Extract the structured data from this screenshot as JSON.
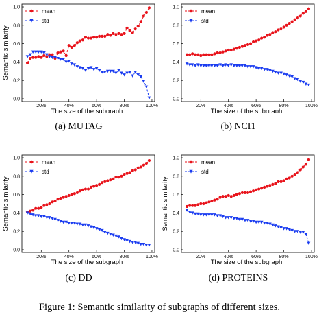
{
  "caption": "Figure 1: Semantic similarity of subgraphs of different sizes.",
  "colors": {
    "mean": "#e8131b",
    "std": "#1a3cf0"
  },
  "chart_data": [
    {
      "type": "line",
      "subcaption": "(a) MUTAG",
      "xlabel": "The size of the subgraph",
      "ylabel": "Semantic similarity",
      "xlim": [
        0.06,
        1.02
      ],
      "ylim": [
        -0.03,
        1.03
      ],
      "xticks": [
        0.2,
        0.4,
        0.6,
        0.8,
        1.0
      ],
      "xtick_labels": [
        "20%",
        "40%",
        "60%",
        "80%",
        "100%"
      ],
      "yticks": [
        0.0,
        0.2,
        0.4,
        0.6,
        0.8,
        1.0
      ],
      "ytick_labels": [
        "0.0",
        "0.2",
        "0.4",
        "0.6",
        "0.8",
        "1.0"
      ],
      "legend_position": "top-left",
      "x": [
        0.1,
        0.12,
        0.14,
        0.16,
        0.18,
        0.2,
        0.22,
        0.24,
        0.26,
        0.28,
        0.3,
        0.32,
        0.34,
        0.36,
        0.38,
        0.4,
        0.42,
        0.44,
        0.46,
        0.48,
        0.5,
        0.52,
        0.54,
        0.56,
        0.58,
        0.6,
        0.62,
        0.64,
        0.66,
        0.68,
        0.7,
        0.72,
        0.74,
        0.76,
        0.78,
        0.8,
        0.82,
        0.84,
        0.86,
        0.88,
        0.9,
        0.92,
        0.94,
        0.96,
        0.98
      ],
      "series": [
        {
          "name": "mean",
          "marker": "circle",
          "values": [
            0.39,
            0.44,
            0.45,
            0.45,
            0.46,
            0.45,
            0.47,
            0.46,
            0.48,
            0.48,
            0.44,
            0.5,
            0.51,
            0.52,
            0.47,
            0.58,
            0.56,
            0.58,
            0.61,
            0.63,
            0.64,
            0.67,
            0.66,
            0.66,
            0.67,
            0.67,
            0.68,
            0.68,
            0.68,
            0.7,
            0.69,
            0.71,
            0.7,
            0.71,
            0.7,
            0.71,
            0.77,
            0.74,
            0.72,
            0.76,
            0.79,
            0.84,
            0.9,
            0.94,
            0.99
          ]
        },
        {
          "name": "std",
          "marker": "triangle-down",
          "values": [
            0.46,
            0.48,
            0.51,
            0.51,
            0.51,
            0.51,
            0.5,
            0.48,
            0.46,
            0.45,
            0.45,
            0.44,
            0.43,
            0.43,
            0.4,
            0.41,
            0.38,
            0.37,
            0.35,
            0.34,
            0.33,
            0.31,
            0.33,
            0.34,
            0.32,
            0.33,
            0.31,
            0.29,
            0.29,
            0.3,
            0.3,
            0.3,
            0.28,
            0.31,
            0.28,
            0.26,
            0.28,
            0.29,
            0.25,
            0.29,
            0.26,
            0.24,
            0.19,
            0.13,
            0.01
          ]
        }
      ]
    },
    {
      "type": "line",
      "subcaption": "(b) NCI1",
      "xlabel": "The size of the subgraph",
      "ylabel": "",
      "xlim": [
        0.06,
        1.02
      ],
      "ylim": [
        -0.03,
        1.03
      ],
      "xticks": [
        0.2,
        0.4,
        0.6,
        0.8,
        1.0
      ],
      "xtick_labels": [
        "20%",
        "40%",
        "60%",
        "80%",
        "100%"
      ],
      "yticks": [
        0.0,
        0.2,
        0.4,
        0.6,
        0.8,
        1.0
      ],
      "ytick_labels": [
        "0.0",
        "0.2",
        "0.4",
        "0.6",
        "0.8",
        "1.0"
      ],
      "legend_position": "top-left",
      "x": [
        0.1,
        0.12,
        0.14,
        0.16,
        0.18,
        0.2,
        0.22,
        0.24,
        0.26,
        0.28,
        0.3,
        0.32,
        0.34,
        0.36,
        0.38,
        0.4,
        0.42,
        0.44,
        0.46,
        0.48,
        0.5,
        0.52,
        0.54,
        0.56,
        0.58,
        0.6,
        0.62,
        0.64,
        0.66,
        0.68,
        0.7,
        0.72,
        0.74,
        0.76,
        0.78,
        0.8,
        0.82,
        0.84,
        0.86,
        0.88,
        0.9,
        0.92,
        0.94,
        0.96,
        0.98
      ],
      "series": [
        {
          "name": "mean",
          "marker": "circle",
          "values": [
            0.48,
            0.48,
            0.49,
            0.48,
            0.48,
            0.47,
            0.48,
            0.48,
            0.48,
            0.48,
            0.49,
            0.5,
            0.5,
            0.51,
            0.52,
            0.53,
            0.53,
            0.54,
            0.55,
            0.56,
            0.57,
            0.58,
            0.59,
            0.6,
            0.62,
            0.63,
            0.64,
            0.66,
            0.67,
            0.69,
            0.7,
            0.72,
            0.73,
            0.75,
            0.76,
            0.78,
            0.8,
            0.82,
            0.84,
            0.86,
            0.88,
            0.9,
            0.93,
            0.95,
            0.98
          ]
        },
        {
          "name": "std",
          "marker": "triangle-down",
          "values": [
            0.38,
            0.37,
            0.37,
            0.36,
            0.37,
            0.36,
            0.36,
            0.36,
            0.36,
            0.36,
            0.36,
            0.36,
            0.37,
            0.36,
            0.37,
            0.36,
            0.37,
            0.36,
            0.36,
            0.36,
            0.36,
            0.36,
            0.35,
            0.35,
            0.35,
            0.34,
            0.33,
            0.33,
            0.32,
            0.32,
            0.31,
            0.3,
            0.29,
            0.28,
            0.28,
            0.27,
            0.26,
            0.25,
            0.24,
            0.22,
            0.21,
            0.19,
            0.18,
            0.16,
            0.15
          ]
        }
      ]
    },
    {
      "type": "line",
      "subcaption": "(c) DD",
      "xlabel": "The size of the subgraph",
      "ylabel": "Semantic similarity",
      "xlim": [
        0.06,
        1.02
      ],
      "ylim": [
        -0.03,
        1.03
      ],
      "xticks": [
        0.2,
        0.4,
        0.6,
        0.8,
        1.0
      ],
      "xtick_labels": [
        "20%",
        "40%",
        "60%",
        "80%",
        "100%"
      ],
      "yticks": [
        0.0,
        0.2,
        0.4,
        0.6,
        0.8,
        1.0
      ],
      "ytick_labels": [
        "0.0",
        "0.2",
        "0.4",
        "0.6",
        "0.8",
        "1.0"
      ],
      "legend_position": "top-left",
      "x": [
        0.1,
        0.12,
        0.14,
        0.16,
        0.18,
        0.2,
        0.22,
        0.24,
        0.26,
        0.28,
        0.3,
        0.32,
        0.34,
        0.36,
        0.38,
        0.4,
        0.42,
        0.44,
        0.46,
        0.48,
        0.5,
        0.52,
        0.54,
        0.56,
        0.58,
        0.6,
        0.62,
        0.64,
        0.66,
        0.68,
        0.7,
        0.72,
        0.74,
        0.76,
        0.78,
        0.8,
        0.82,
        0.84,
        0.86,
        0.88,
        0.9,
        0.92,
        0.94,
        0.96,
        0.98
      ],
      "series": [
        {
          "name": "mean",
          "marker": "circle",
          "values": [
            0.41,
            0.42,
            0.43,
            0.45,
            0.45,
            0.46,
            0.48,
            0.49,
            0.5,
            0.52,
            0.53,
            0.55,
            0.56,
            0.57,
            0.58,
            0.59,
            0.6,
            0.61,
            0.62,
            0.64,
            0.65,
            0.66,
            0.66,
            0.68,
            0.69,
            0.7,
            0.71,
            0.73,
            0.74,
            0.75,
            0.76,
            0.77,
            0.79,
            0.79,
            0.8,
            0.82,
            0.83,
            0.84,
            0.86,
            0.87,
            0.89,
            0.9,
            0.92,
            0.94,
            0.97
          ]
        },
        {
          "name": "std",
          "marker": "triangle-down",
          "values": [
            0.4,
            0.39,
            0.38,
            0.37,
            0.37,
            0.36,
            0.36,
            0.35,
            0.35,
            0.34,
            0.33,
            0.32,
            0.31,
            0.3,
            0.3,
            0.29,
            0.29,
            0.29,
            0.28,
            0.28,
            0.27,
            0.27,
            0.26,
            0.25,
            0.24,
            0.23,
            0.22,
            0.21,
            0.19,
            0.18,
            0.17,
            0.16,
            0.15,
            0.14,
            0.12,
            0.11,
            0.1,
            0.09,
            0.08,
            0.08,
            0.07,
            0.06,
            0.06,
            0.05,
            0.05
          ]
        }
      ]
    },
    {
      "type": "line",
      "subcaption": "(d) PROTEINS",
      "xlabel": "The size of the subgraph",
      "ylabel": "Semantic similarity",
      "xlim": [
        0.06,
        1.02
      ],
      "ylim": [
        -0.03,
        1.03
      ],
      "xticks": [
        0.2,
        0.4,
        0.6,
        0.8,
        1.0
      ],
      "xtick_labels": [
        "20%",
        "40%",
        "60%",
        "80%",
        "100%"
      ],
      "yticks": [
        0.0,
        0.2,
        0.4,
        0.6,
        0.8,
        1.0
      ],
      "ytick_labels": [
        "0.0",
        "0.2",
        "0.4",
        "0.6",
        "0.8",
        "1.0"
      ],
      "legend_position": "top-left",
      "x": [
        0.1,
        0.12,
        0.14,
        0.16,
        0.18,
        0.2,
        0.22,
        0.24,
        0.26,
        0.28,
        0.3,
        0.32,
        0.34,
        0.36,
        0.38,
        0.4,
        0.42,
        0.44,
        0.46,
        0.48,
        0.5,
        0.52,
        0.54,
        0.56,
        0.58,
        0.6,
        0.62,
        0.64,
        0.66,
        0.68,
        0.7,
        0.72,
        0.74,
        0.76,
        0.78,
        0.8,
        0.82,
        0.84,
        0.86,
        0.88,
        0.9,
        0.92,
        0.94,
        0.96,
        0.98
      ],
      "series": [
        {
          "name": "mean",
          "marker": "circle",
          "values": [
            0.47,
            0.48,
            0.48,
            0.48,
            0.49,
            0.5,
            0.5,
            0.51,
            0.52,
            0.53,
            0.54,
            0.55,
            0.57,
            0.58,
            0.58,
            0.59,
            0.58,
            0.59,
            0.6,
            0.61,
            0.62,
            0.62,
            0.62,
            0.63,
            0.64,
            0.65,
            0.66,
            0.67,
            0.68,
            0.69,
            0.7,
            0.71,
            0.72,
            0.74,
            0.74,
            0.75,
            0.77,
            0.78,
            0.8,
            0.82,
            0.84,
            0.87,
            0.9,
            0.93,
            0.98
          ]
        },
        {
          "name": "std",
          "marker": "triangle-down",
          "values": [
            0.43,
            0.41,
            0.4,
            0.39,
            0.39,
            0.38,
            0.38,
            0.38,
            0.38,
            0.38,
            0.38,
            0.37,
            0.37,
            0.36,
            0.35,
            0.35,
            0.35,
            0.34,
            0.34,
            0.33,
            0.33,
            0.32,
            0.32,
            0.31,
            0.31,
            0.3,
            0.3,
            0.3,
            0.29,
            0.29,
            0.28,
            0.27,
            0.26,
            0.25,
            0.24,
            0.23,
            0.23,
            0.22,
            0.21,
            0.2,
            0.2,
            0.19,
            0.19,
            0.17,
            0.07
          ]
        }
      ]
    }
  ]
}
